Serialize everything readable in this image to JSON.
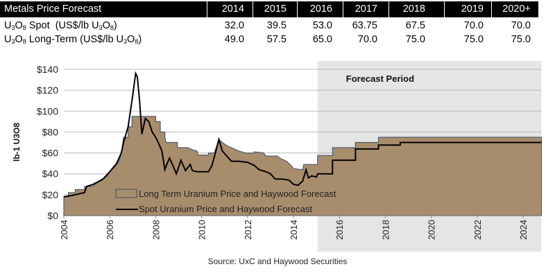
{
  "table": {
    "title": "Metals Price Forecast",
    "years": [
      "2014",
      "2015",
      "2016",
      "2017",
      "2018",
      "2019",
      "2020+"
    ],
    "rows": [
      {
        "label_pre": "U",
        "label_s1": "3",
        "label_mid": "O",
        "label_s2": "8",
        "label_post": " Spot  (US$/lb U",
        "label_s3": "3",
        "label_mid2": "O",
        "label_s4": "8",
        "label_end": ")",
        "values": [
          "32.0",
          "39.5",
          "53.0",
          "63.75",
          "67.5",
          "70.0",
          "70.0"
        ]
      },
      {
        "label_pre": "U",
        "label_s1": "3",
        "label_mid": "O",
        "label_s2": "8",
        "label_post": " Long-Term (US$/lb U",
        "label_s3": "3",
        "label_mid2": "O",
        "label_s4": "8",
        "label_end": ")",
        "values": [
          "49.0",
          "57.5",
          "65.0",
          "70.0",
          "75.0",
          "75.0",
          "75.0"
        ]
      }
    ]
  },
  "chart_data": {
    "type": "area",
    "title": "",
    "xlabel": "",
    "ylabel": "lb-1 U3O8",
    "xlim": [
      2004,
      2024.8
    ],
    "ylim": [
      0,
      140
    ],
    "yticks": [
      0,
      20,
      40,
      60,
      80,
      100,
      120,
      140
    ],
    "ytick_labels": [
      "$0",
      "$20",
      "$40",
      "$60",
      "$80",
      "$100",
      "$120",
      "$140"
    ],
    "xticks": [
      2004,
      2006,
      2008,
      2010,
      2012,
      2014,
      2016,
      2018,
      2020,
      2022,
      2024
    ],
    "xtick_labels": [
      "2004",
      "2006",
      "2008",
      "2010",
      "2012",
      "2014",
      "2016",
      "2018",
      "2020",
      "2022",
      "2024"
    ],
    "grid": true,
    "forecast_region": {
      "label": "Forecast Period",
      "start": 2015.05,
      "end": 2024.8
    },
    "legend_position": "bottom-left",
    "source": "Source: UxC and Haywood Securities",
    "colors": {
      "area": "#a88d6d",
      "area_edge": "#4d5b6b",
      "spot": "#000000",
      "forecast_bg": "#e5e5e5",
      "grid": "#b8b8b8"
    },
    "series": [
      {
        "name": "Long Term Uranium Price and Haywood Forecast",
        "kind": "area-step",
        "points": [
          [
            2004,
            18
          ],
          [
            2004.2,
            18
          ],
          [
            2004.2,
            22
          ],
          [
            2004.5,
            22
          ],
          [
            2004.5,
            25
          ],
          [
            2004.9,
            25
          ],
          [
            2004.9,
            28
          ],
          [
            2005.3,
            28
          ],
          [
            2005.3,
            31
          ],
          [
            2005.6,
            33
          ],
          [
            2005.9,
            38
          ],
          [
            2006,
            42
          ],
          [
            2006.2,
            46
          ],
          [
            2006.4,
            52
          ],
          [
            2006.5,
            60
          ],
          [
            2006.55,
            66
          ],
          [
            2006.6,
            75
          ],
          [
            2006.8,
            75
          ],
          [
            2006.8,
            85
          ],
          [
            2006.97,
            85
          ],
          [
            2006.97,
            95
          ],
          [
            2008,
            95
          ],
          [
            2008,
            90
          ],
          [
            2008.2,
            90
          ],
          [
            2008.2,
            80
          ],
          [
            2008.4,
            80
          ],
          [
            2008.4,
            75
          ],
          [
            2008.45,
            70
          ],
          [
            2008.95,
            70
          ],
          [
            2008.95,
            65
          ],
          [
            2009.4,
            65
          ],
          [
            2009.6,
            63
          ],
          [
            2009.8,
            62
          ],
          [
            2009.85,
            58
          ],
          [
            2010.3,
            58
          ],
          [
            2010.3,
            60
          ],
          [
            2010.55,
            60
          ],
          [
            2010.65,
            66
          ],
          [
            2010.75,
            73
          ],
          [
            2010.9,
            70
          ],
          [
            2011.1,
            67
          ],
          [
            2011.3,
            65
          ],
          [
            2011.6,
            62
          ],
          [
            2011.9,
            60
          ],
          [
            2012.3,
            60
          ],
          [
            2012.3,
            61
          ],
          [
            2012.7,
            60
          ],
          [
            2012.8,
            57
          ],
          [
            2013.3,
            57
          ],
          [
            2013.4,
            55
          ],
          [
            2013.7,
            52
          ],
          [
            2013.9,
            48
          ],
          [
            2014,
            45
          ],
          [
            2014.4,
            44
          ],
          [
            2014.45,
            49
          ],
          [
            2015.05,
            49
          ],
          [
            2015.05,
            57.5
          ],
          [
            2015.7,
            57.5
          ],
          [
            2015.7,
            65
          ],
          [
            2016.7,
            65
          ],
          [
            2016.7,
            70
          ],
          [
            2017.7,
            70
          ],
          [
            2017.7,
            75
          ],
          [
            2024.8,
            75
          ]
        ]
      },
      {
        "name": "Spot Uranium Price and Haywood Forecast",
        "kind": "line",
        "points": [
          [
            2004,
            18
          ],
          [
            2004.3,
            19
          ],
          [
            2004.5,
            20
          ],
          [
            2004.9,
            22
          ],
          [
            2005,
            28
          ],
          [
            2005.3,
            30
          ],
          [
            2005.7,
            35
          ],
          [
            2006,
            42
          ],
          [
            2006.3,
            50
          ],
          [
            2006.5,
            60
          ],
          [
            2006.6,
            70
          ],
          [
            2006.8,
            85
          ],
          [
            2006.9,
            100
          ],
          [
            2007,
            115
          ],
          [
            2007.08,
            128
          ],
          [
            2007.13,
            136
          ],
          [
            2007.2,
            133
          ],
          [
            2007.3,
            110
          ],
          [
            2007.4,
            78
          ],
          [
            2007.48,
            86
          ],
          [
            2007.55,
            93
          ],
          [
            2007.7,
            90
          ],
          [
            2007.85,
            80
          ],
          [
            2008,
            75
          ],
          [
            2008.15,
            68
          ],
          [
            2008.27,
            62
          ],
          [
            2008.4,
            44
          ],
          [
            2008.5,
            50
          ],
          [
            2008.6,
            55
          ],
          [
            2008.75,
            48
          ],
          [
            2008.9,
            40
          ],
          [
            2009.1,
            53
          ],
          [
            2009.3,
            43
          ],
          [
            2009.5,
            49
          ],
          [
            2009.6,
            43
          ],
          [
            2009.8,
            42
          ],
          [
            2010,
            42
          ],
          [
            2010.3,
            42
          ],
          [
            2010.45,
            48
          ],
          [
            2010.6,
            60
          ],
          [
            2010.75,
            73
          ],
          [
            2010.9,
            62
          ],
          [
            2011.1,
            57
          ],
          [
            2011.3,
            52
          ],
          [
            2011.6,
            52
          ],
          [
            2012,
            51
          ],
          [
            2012.3,
            48
          ],
          [
            2012.5,
            44
          ],
          [
            2012.8,
            42
          ],
          [
            2013,
            40
          ],
          [
            2013.2,
            35
          ],
          [
            2013.5,
            35
          ],
          [
            2013.8,
            34
          ],
          [
            2014,
            30
          ],
          [
            2014.2,
            29
          ],
          [
            2014.4,
            33
          ],
          [
            2014.55,
            44
          ],
          [
            2014.65,
            36
          ],
          [
            2014.8,
            38
          ],
          [
            2015,
            37
          ],
          [
            2015.05,
            40
          ],
          [
            2015.7,
            40
          ],
          [
            2015.7,
            53
          ],
          [
            2016.7,
            53
          ],
          [
            2016.7,
            63.75
          ],
          [
            2017.7,
            63.75
          ],
          [
            2017.7,
            67.5
          ],
          [
            2018.65,
            67.5
          ],
          [
            2018.65,
            70
          ],
          [
            2024.8,
            70
          ]
        ]
      }
    ]
  }
}
